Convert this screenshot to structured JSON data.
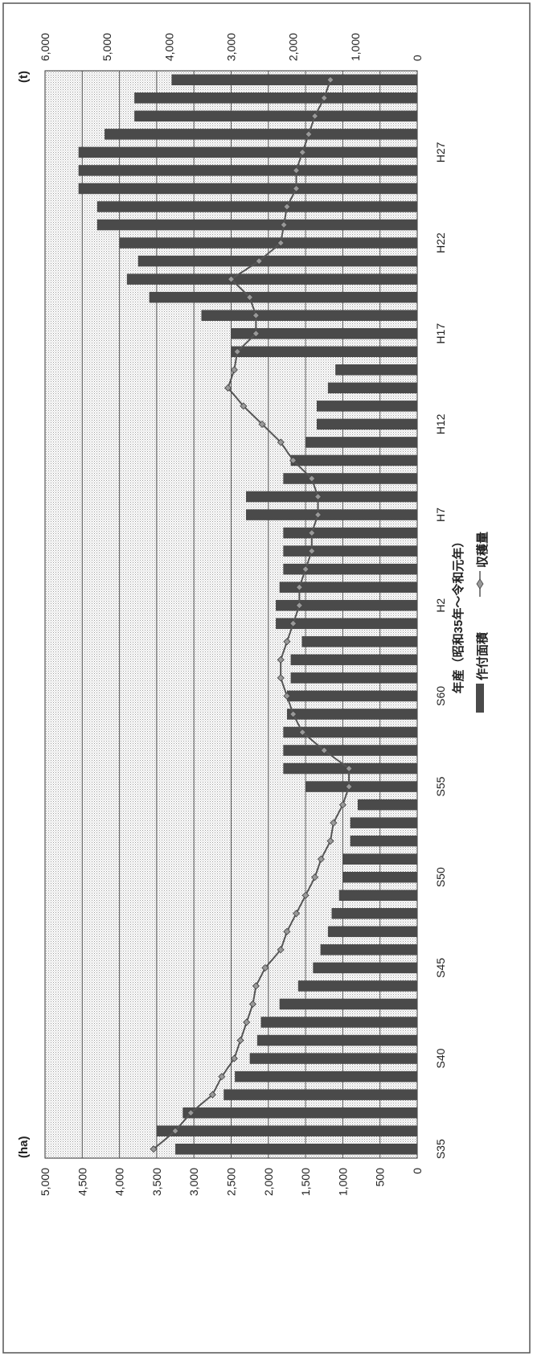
{
  "chart_data": {
    "type": "bar",
    "xlabel": "年産（昭和35年～令和元年）",
    "unit_left": "(ha)",
    "unit_right": "(t)",
    "ylim_left": [
      0,
      5000
    ],
    "ylim_right": [
      0,
      6000
    ],
    "yticks_left": [
      "0",
      "500",
      "1,000",
      "1,500",
      "2,000",
      "2,500",
      "3,000",
      "3,500",
      "4,000",
      "4,500",
      "5,000"
    ],
    "yticks_right": [
      "0",
      "1,000",
      "2,000",
      "3,000",
      "4,000",
      "5,000",
      "6,000"
    ],
    "grid": true,
    "legend_position": "bottom",
    "x_tick_labels": [
      "S35",
      "S40",
      "S45",
      "S50",
      "S55",
      "S60",
      "H2",
      "H7",
      "H12",
      "H17",
      "H22",
      "H27"
    ],
    "categories": [
      "S35",
      "S36",
      "S37",
      "S38",
      "S39",
      "S40",
      "S41",
      "S42",
      "S43",
      "S44",
      "S45",
      "S46",
      "S47",
      "S48",
      "S49",
      "S50",
      "S51",
      "S52",
      "S53",
      "S54",
      "S55",
      "S56",
      "S57",
      "S58",
      "S59",
      "S60",
      "S61",
      "S62",
      "S63",
      "H1",
      "H2",
      "H3",
      "H4",
      "H5",
      "H6",
      "H7",
      "H8",
      "H9",
      "H10",
      "H11",
      "H12",
      "H13",
      "H14",
      "H15",
      "H16",
      "H17",
      "H18",
      "H19",
      "H20",
      "H21",
      "H22",
      "H23",
      "H24",
      "H25",
      "H26",
      "H27",
      "H28",
      "H29",
      "H30",
      "R1"
    ],
    "series": [
      {
        "name": "作付面積",
        "axis": "left",
        "color": "#4a4a4a",
        "values": [
          3250,
          3500,
          3150,
          2600,
          2450,
          2250,
          2150,
          2100,
          1850,
          1600,
          1400,
          1300,
          1200,
          1150,
          1050,
          1000,
          1000,
          900,
          900,
          800,
          1500,
          1800,
          1800,
          1800,
          1750,
          1750,
          1700,
          1700,
          1550,
          1900,
          1900,
          1850,
          1800,
          1800,
          1800,
          2300,
          2300,
          1800,
          1700,
          1500,
          1350,
          1350,
          1200,
          1100,
          2500,
          2500,
          2900,
          3600,
          3900,
          3750,
          4000,
          4300,
          4300,
          4550,
          4550,
          4550,
          4200,
          3800,
          3800,
          3300
        ]
      },
      {
        "name": "収穫量",
        "axis": "right",
        "color": "#555555",
        "marker": "diamond",
        "values": [
          4250,
          3900,
          3650,
          3300,
          3150,
          2950,
          2850,
          2750,
          2650,
          2600,
          2450,
          2200,
          2100,
          1950,
          1800,
          1650,
          1550,
          1400,
          1350,
          1200,
          1100,
          1100,
          1500,
          1850,
          2000,
          2100,
          2200,
          2200,
          2100,
          2000,
          1900,
          1900,
          1800,
          1700,
          1700,
          1600,
          1600,
          1700,
          2000,
          2200,
          2500,
          2800,
          3050,
          2950,
          2900,
          2600,
          2600,
          2700,
          3000,
          2550,
          2200,
          2150,
          2100,
          1950,
          1950,
          1850,
          1750,
          1650,
          1500,
          1400
        ]
      }
    ]
  }
}
